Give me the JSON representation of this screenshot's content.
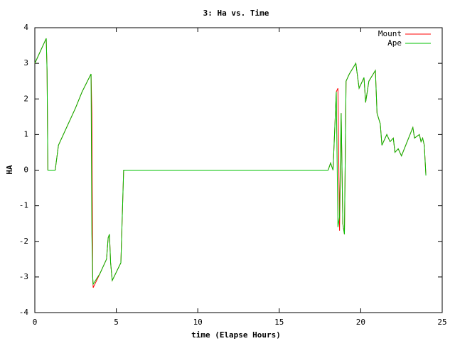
{
  "chart_data": {
    "type": "line",
    "title": "3: Ha vs. Time",
    "xlabel": "time (Elapse Hours)",
    "ylabel": "HA",
    "x": [
      0,
      0.1,
      0.7,
      0.75,
      0.8,
      1.25,
      1.45,
      2.5,
      2.9,
      3.45,
      3.5,
      3.55,
      3.58,
      4.0,
      4.4,
      4.5,
      4.58,
      4.65,
      4.75,
      5.28,
      5.45,
      18.0,
      18.15,
      18.3,
      18.5,
      18.6,
      18.7,
      18.8,
      18.9,
      19.0,
      19.1,
      19.3,
      19.7,
      19.9,
      20.2,
      20.3,
      20.5,
      20.9,
      21.0,
      21.2,
      21.3,
      21.6,
      21.8,
      22.0,
      22.1,
      22.3,
      22.5,
      23.2,
      23.3,
      23.6,
      23.7,
      23.8,
      23.9,
      24.0
    ],
    "series": [
      {
        "name": "Mount",
        "color": "#ff0000",
        "values": [
          3.0,
          3.1,
          3.7,
          2.8,
          0,
          0,
          0.7,
          1.75,
          2.2,
          2.7,
          1.6,
          -3.0,
          -3.3,
          -2.9,
          -2.5,
          -1.9,
          -1.8,
          -2.6,
          -3.1,
          -2.6,
          0,
          0,
          0.2,
          0,
          2.2,
          2.3,
          -1.7,
          1.6,
          -1.5,
          -1.8,
          2.5,
          2.7,
          3.0,
          2.3,
          2.6,
          1.9,
          2.5,
          2.8,
          1.6,
          1.3,
          0.7,
          1.0,
          0.8,
          0.9,
          0.5,
          0.6,
          0.4,
          1.2,
          0.9,
          1.0,
          0.8,
          0.9,
          0.7,
          -0.15
        ]
      },
      {
        "name": "Ape",
        "color": "#00c000",
        "values": [
          3.0,
          3.1,
          3.7,
          2.8,
          0,
          0,
          0.7,
          1.75,
          2.2,
          2.7,
          -1.8,
          -3.0,
          -3.2,
          -2.9,
          -2.5,
          -1.9,
          -1.8,
          -2.6,
          -3.1,
          -2.6,
          0,
          0,
          0.2,
          0,
          2.2,
          -1.6,
          -1.3,
          1.6,
          -1.5,
          -1.8,
          2.5,
          2.7,
          3.0,
          2.3,
          2.6,
          1.9,
          2.5,
          2.8,
          1.6,
          1.3,
          0.7,
          1.0,
          0.8,
          0.9,
          0.5,
          0.6,
          0.4,
          1.2,
          0.9,
          1.0,
          0.8,
          0.9,
          0.7,
          -0.15
        ]
      }
    ],
    "xlim": [
      0,
      25
    ],
    "xticks": [
      0,
      5,
      10,
      15,
      20,
      25
    ],
    "ylim": [
      -4,
      4
    ],
    "yticks": [
      -4,
      -3,
      -2,
      -1,
      0,
      1,
      2,
      3,
      4
    ],
    "legend": "top-right"
  }
}
